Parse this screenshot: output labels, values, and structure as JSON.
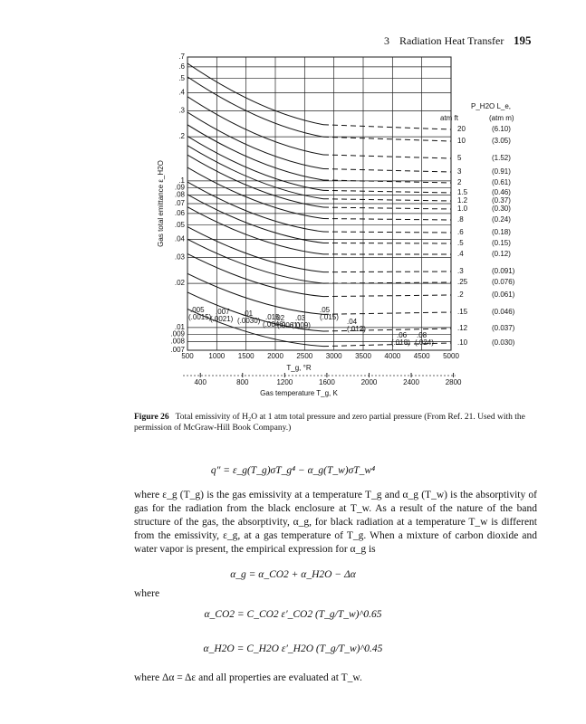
{
  "header": {
    "chapter": "3",
    "section": "Radiation Heat Transfer",
    "page": "195"
  },
  "figure": {
    "y_label": "Gas total emittance ε_H2O",
    "y_ticks": [
      {
        "value": 0.7,
        "label": ".7"
      },
      {
        "value": 0.6,
        "label": ".6"
      },
      {
        "value": 0.5,
        "label": ".5"
      },
      {
        "value": 0.4,
        "label": ".4"
      },
      {
        "value": 0.3,
        "label": ".3"
      },
      {
        "value": 0.2,
        "label": ".2"
      },
      {
        "value": 0.1,
        "label": ".1"
      },
      {
        "value": 0.09,
        "label": ".09"
      },
      {
        "value": 0.08,
        "label": ".08"
      },
      {
        "value": 0.07,
        "label": ".07"
      },
      {
        "value": 0.06,
        "label": ".06"
      },
      {
        "value": 0.05,
        "label": ".05"
      },
      {
        "value": 0.04,
        "label": ".04"
      },
      {
        "value": 0.03,
        "label": ".03"
      },
      {
        "value": 0.02,
        "label": ".02"
      },
      {
        "value": 0.01,
        "label": ".01"
      },
      {
        "value": 0.009,
        "label": ".009"
      },
      {
        "value": 0.008,
        "label": ".008"
      },
      {
        "value": 0.007,
        "label": ".007"
      }
    ],
    "ylim": [
      0.007,
      0.7
    ],
    "x_ticks_R": [
      500,
      1000,
      1500,
      2000,
      2500,
      3000,
      3500,
      4000,
      4500,
      5000
    ],
    "xlim_R": [
      500,
      5000
    ],
    "x_label_R": "T_g, °R",
    "x_ticks_K": [
      400,
      800,
      1200,
      1600,
      2000,
      2400,
      2800
    ],
    "x_label_K": "Gas temperature T_g, K",
    "legend_title": "P_H2O L_e,",
    "legend_units": [
      "atm ft",
      "(atm m)"
    ],
    "curves": [
      [
        "20",
        "(6.10)"
      ],
      [
        "10",
        "(3.05)"
      ],
      [
        "5",
        "(1.52)"
      ],
      [
        "3",
        "(0.91)"
      ],
      [
        "2",
        "(0.61)"
      ],
      [
        "1.5",
        "(0.46)"
      ],
      [
        "1.2",
        "(0.37)"
      ],
      [
        "1.0",
        "(0.30)"
      ],
      [
        ".8",
        "(0.24)"
      ],
      [
        ".6",
        "(0.18)"
      ],
      [
        ".5",
        "(0.15)"
      ],
      [
        ".4",
        "(0.12)"
      ],
      [
        ".3",
        "(0.091)"
      ],
      [
        ".25",
        "(0.076)"
      ],
      [
        ".2",
        "(0.061)"
      ],
      [
        ".15",
        "(0.046)"
      ],
      [
        ".12",
        "(0.037)"
      ],
      [
        ".10",
        "(0.030)"
      ]
    ],
    "inner_labels": [
      ".005",
      "(.0015)",
      ".007",
      "(.0021)",
      ".01",
      "(.0030)",
      ".015",
      "(.0046)",
      ".02",
      "(.0061)",
      ".03",
      "(.009)",
      ".05",
      "(.015)",
      ".04",
      "(.012)",
      ".06",
      "(.018)",
      ".08",
      "(.024)"
    ],
    "caption_label": "Figure 26",
    "caption": "Total emissivity of H₂O at 1 atm total pressure and zero partial pressure (From Ref. 21. Used with the permission of McGraw-Hill Book Company.)"
  },
  "body": {
    "eq1": "q″ = ε_g(T_g)σT_g⁴ − α_g(T_w)σT_w⁴",
    "para1": "where ε_g (T_g) is the gas emissivity at a temperature T_g and α_g (T_w) is the absorptivity of gas for the radiation from the black enclosure at T_w. As a result of the nature of the band structure of the gas, the absorptivity, α_g, for black radiation at a temperature T_w is different from the emissivity, ε_g, at a gas temperature of T_g. When a mixture of carbon dioxide and water vapor is present, the empirical expression for α_g is",
    "eq2": "α_g = α_CO2 + α_H2O − Δα",
    "where": "where",
    "eq3": "α_CO2 = C_CO2 ε′_CO2 (T_g/T_w)^0.65",
    "eq4": "α_H2O = C_H2O ε′_H2O (T_g/T_w)^0.45",
    "para2": "where Δα = Δε and all properties are evaluated at T_w."
  }
}
